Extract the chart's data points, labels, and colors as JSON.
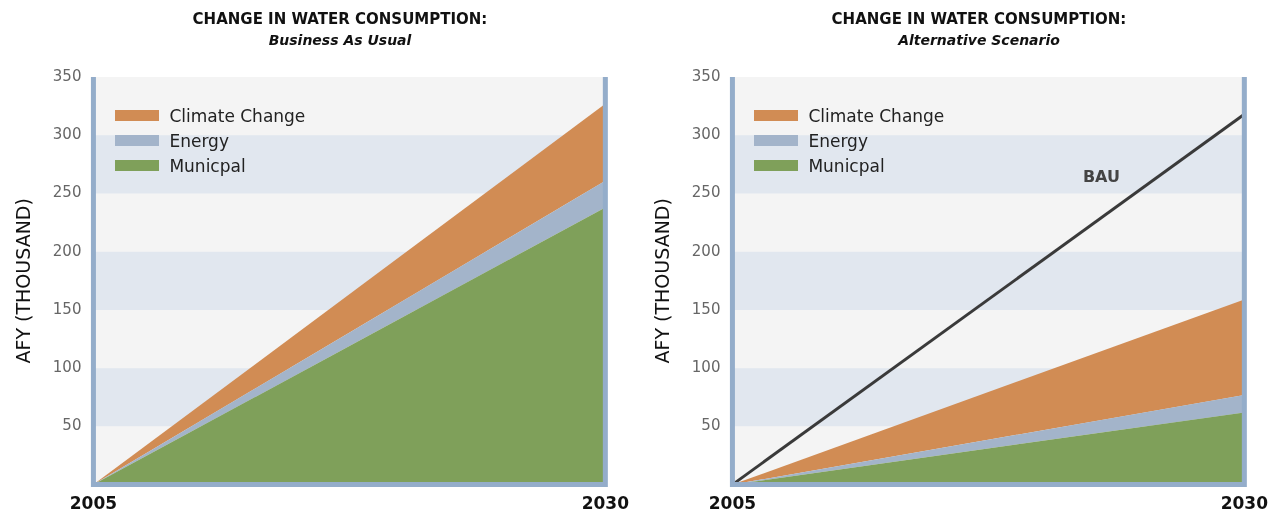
{
  "chart_data": [
    {
      "type": "area",
      "title": "CHANGE IN WATER CONSUMPTION:",
      "subtitle": "Business As Usual",
      "ylabel": "AFY (THOUSAND)",
      "x": [
        "2005",
        "2030"
      ],
      "stacked": true,
      "xlim": [
        "2005",
        "2030"
      ],
      "xticks": [
        "2005",
        "2030"
      ],
      "ylim": [
        0,
        350
      ],
      "yticks": [
        50,
        100,
        150,
        200,
        250,
        300,
        350
      ],
      "legend": "top left",
      "grid": false,
      "bands": [
        {
          "axis": "y",
          "from": 50,
          "to": 100,
          "color": "#e1e7ef"
        },
        {
          "axis": "y",
          "from": 150,
          "to": 200,
          "color": "#e1e7ef"
        },
        {
          "axis": "y",
          "from": 250,
          "to": 300,
          "color": "#e1e7ef"
        }
      ],
      "series": [
        {
          "name": "Municpal",
          "color": "#7fa05a",
          "values": [
            0,
            238
          ]
        },
        {
          "name": "Energy",
          "color": "#a3b4ca",
          "values": [
            0,
            23
          ]
        },
        {
          "name": "Climate Change",
          "color": "#d18c54",
          "values": [
            0,
            66
          ]
        }
      ]
    },
    {
      "type": "area",
      "title": "CHANGE IN WATER CONSUMPTION:",
      "subtitle": "Alternative Scenario",
      "ylabel": "AFY (THOUSAND)",
      "x": [
        "2005",
        "2030"
      ],
      "stacked": true,
      "xlim": [
        "2005",
        "2030"
      ],
      "xticks": [
        "2005",
        "2030"
      ],
      "ylim": [
        0,
        350
      ],
      "yticks": [
        50,
        100,
        150,
        200,
        250,
        300,
        350
      ],
      "legend": "top left",
      "grid": false,
      "bands": [
        {
          "axis": "y",
          "from": 50,
          "to": 100,
          "color": "#e1e7ef"
        },
        {
          "axis": "y",
          "from": 150,
          "to": 200,
          "color": "#e1e7ef"
        },
        {
          "axis": "y",
          "from": 250,
          "to": 300,
          "color": "#e1e7ef"
        }
      ],
      "series": [
        {
          "name": "Municpal",
          "color": "#7fa05a",
          "values": [
            0,
            62
          ]
        },
        {
          "name": "Energy",
          "color": "#a3b4ca",
          "values": [
            0,
            15
          ]
        },
        {
          "name": "Climate Change",
          "color": "#d18c54",
          "values": [
            0,
            82
          ]
        },
        {
          "name": "BAU",
          "type": "line",
          "color": "#3a3a3a",
          "values": [
            0,
            318
          ]
        }
      ]
    }
  ]
}
